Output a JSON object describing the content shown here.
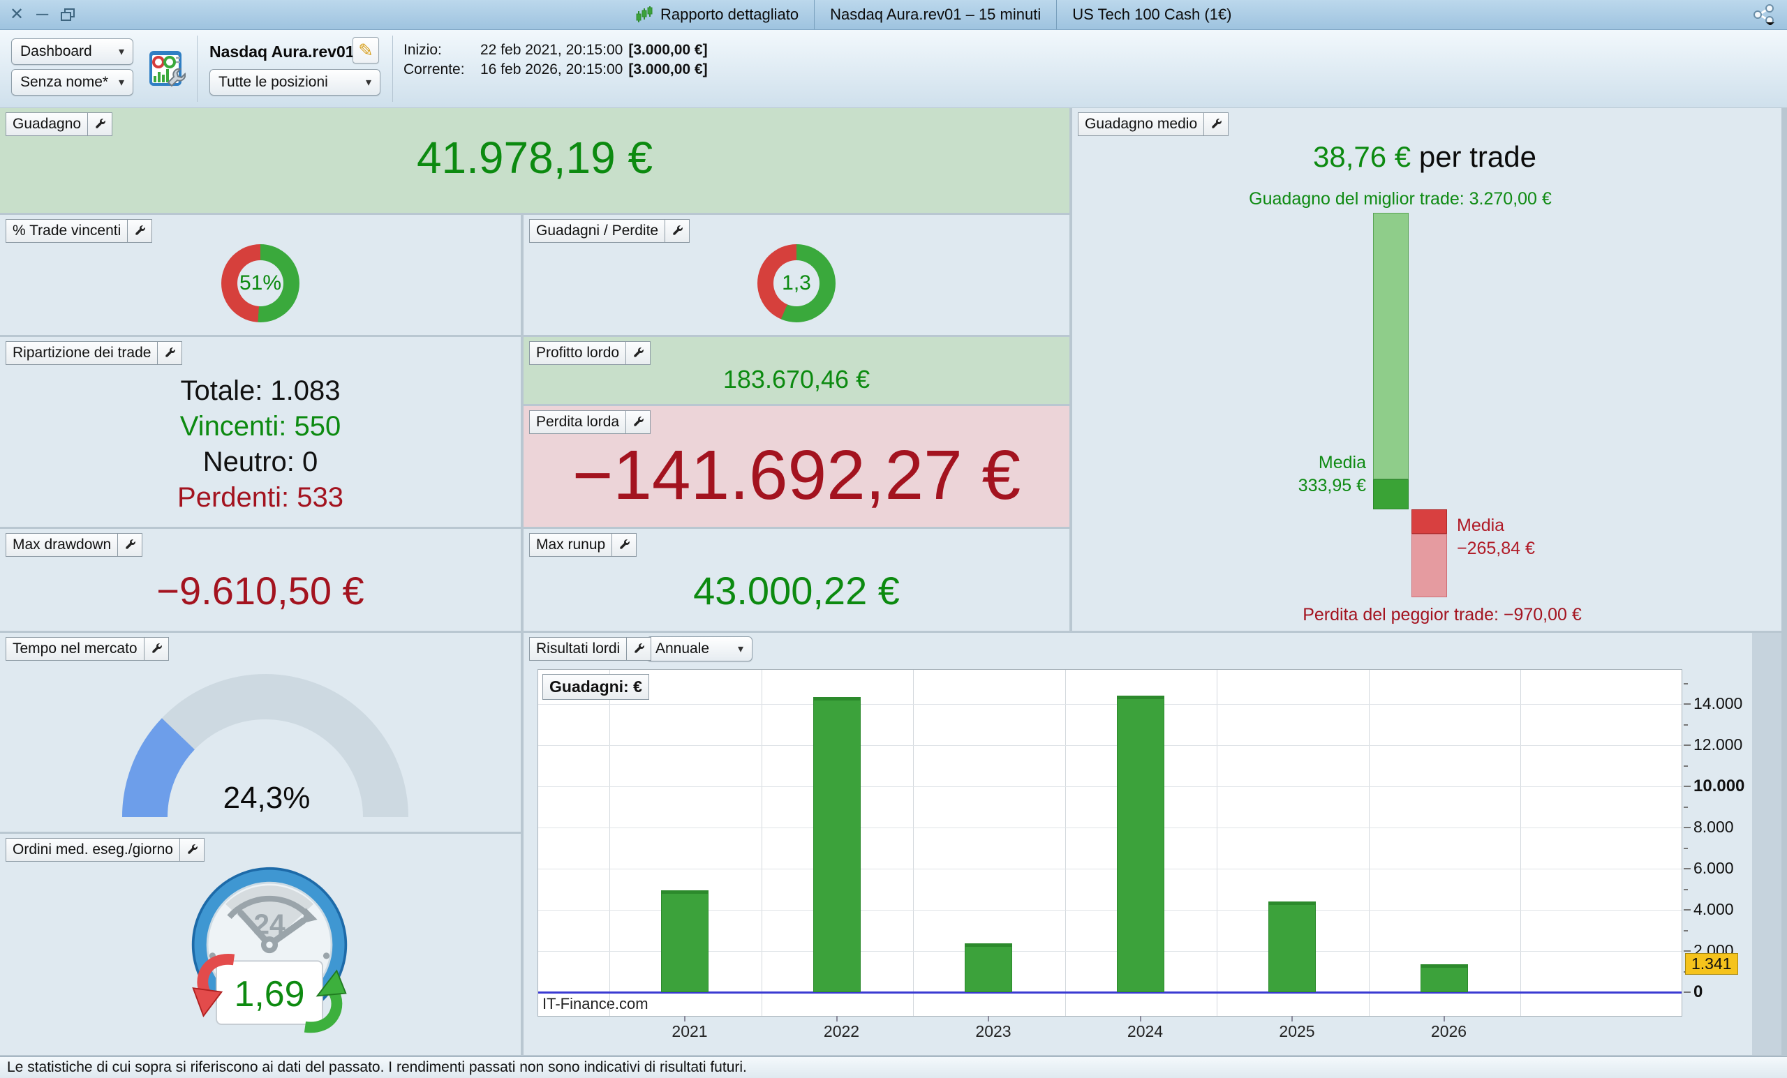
{
  "window": {
    "title_segments": [
      "Rapporto dettagliato",
      "Nasdaq Aura.rev01 – 15 minuti",
      "US Tech 100 Cash (1€)"
    ]
  },
  "toolbar": {
    "dashboard_select": "Dashboard",
    "layout_select": "Senza nome*",
    "report_name": "Nasdaq Aura.rev01",
    "positions_select": "Tutte le posizioni",
    "inizio_label": "Inizio:",
    "inizio_value": "22 feb 2021, 20:15:00",
    "inizio_capital": "[3.000,00 €]",
    "corrente_label": "Corrente:",
    "corrente_value": "16 feb 2026, 20:15:00",
    "corrente_capital": "[3.000,00 €]"
  },
  "panels": {
    "guadagno": {
      "label": "Guadagno",
      "value": "41.978,19 €"
    },
    "trade_vincenti": {
      "label": "% Trade vincenti",
      "donut": {
        "label": "51%",
        "green_pct": 51
      }
    },
    "guadagni_perdite": {
      "label": "Guadagni / Perdite",
      "donut": {
        "label": "1,3",
        "green_pct": 56.5
      }
    },
    "ripartizione": {
      "label": "Ripartizione dei trade",
      "rows": [
        {
          "text": "Totale: 1.083",
          "color": "#111111"
        },
        {
          "text": "Vincenti: 550",
          "color": "#0c8a10"
        },
        {
          "text": "Neutro: 0",
          "color": "#111111"
        },
        {
          "text": "Perdenti: 533",
          "color": "#a3131f"
        }
      ]
    },
    "profitto_lordo": {
      "label": "Profitto lordo",
      "value": "183.670,46 €"
    },
    "perdita_lorda": {
      "label": "Perdita lorda",
      "value": "−141.692,27 €"
    },
    "max_drawdown": {
      "label": "Max drawdown",
      "value": "−9.610,50 €"
    },
    "max_runup": {
      "label": "Max runup",
      "value": "43.000,22 €"
    },
    "guadagno_medio": {
      "label": "Guadagno medio",
      "value": "38,76 €",
      "value_suffix": " per trade",
      "best_label": "Guadagno del miglior trade: 3.270,00 €",
      "avg_win_label_1": "Media",
      "avg_win_label_2": "333,95 €",
      "avg_loss_label_1": "Media",
      "avg_loss_label_2": "−265,84 €",
      "worst_label": "Perdita del peggior trade: −970,00 €",
      "best": 3270,
      "avg_win": 333.95,
      "avg_loss": -265.84,
      "worst": -970
    },
    "tempo_mercato": {
      "label": "Tempo nel mercato",
      "gauge": {
        "label": "24,3%",
        "pct": 24.3
      }
    },
    "ordini": {
      "label": "Ordini med. eseg./giorno",
      "value": "1,69",
      "dial_value": "24"
    },
    "risultati": {
      "label": "Risultati lordi"
    }
  },
  "chart_data": {
    "type": "bar",
    "title": "Risultati lordi",
    "period": "Annuale",
    "series_label": "Guadagni: €",
    "categories": [
      "2021",
      "2022",
      "2023",
      "2024",
      "2025",
      "2026"
    ],
    "values": [
      4950,
      14350,
      2370,
      14420,
      4400,
      1341
    ],
    "ylim": [
      0,
      15600
    ],
    "y_ticks": [
      {
        "v": 14000,
        "label": "14.000",
        "bold": false
      },
      {
        "v": 12000,
        "label": "12.000",
        "bold": false
      },
      {
        "v": 10000,
        "label": "10.000",
        "bold": true
      },
      {
        "v": 8000,
        "label": "8.000",
        "bold": false
      },
      {
        "v": 6000,
        "label": "6.000",
        "bold": false
      },
      {
        "v": 4000,
        "label": "4.000",
        "bold": false
      },
      {
        "v": 2000,
        "label": "2.000",
        "bold": false
      },
      {
        "v": 0,
        "label": "0",
        "bold": true
      }
    ],
    "badge": {
      "v": 1341,
      "label": "1.341"
    },
    "watermark": "IT-Finance.com",
    "grid": true,
    "legend_position": "none"
  },
  "status_bar": {
    "text": "Le statistiche di cui sopra si riferiscono ai dati del passato. I rendimenti passati non sono indicativi di risultati futuri."
  },
  "colors": {
    "donut_green": "#3aa93c",
    "donut_red": "#d6403c",
    "bar_green": "#3ca23b",
    "bar_green_dark": "#2c8a2c",
    "avg_win_light": "#8fcd8a",
    "avg_win_dark": "#3aa336",
    "avg_loss_dark": "#d84040",
    "avg_loss_light": "#e59ba0",
    "gauge_blue": "#6d9eea",
    "gauge_track": "#cdd9e1",
    "text_green": "#0c8a10",
    "text_red": "#a3131f",
    "badge_bg": "#f5c31c",
    "zero_line": "#3a3ad2"
  }
}
